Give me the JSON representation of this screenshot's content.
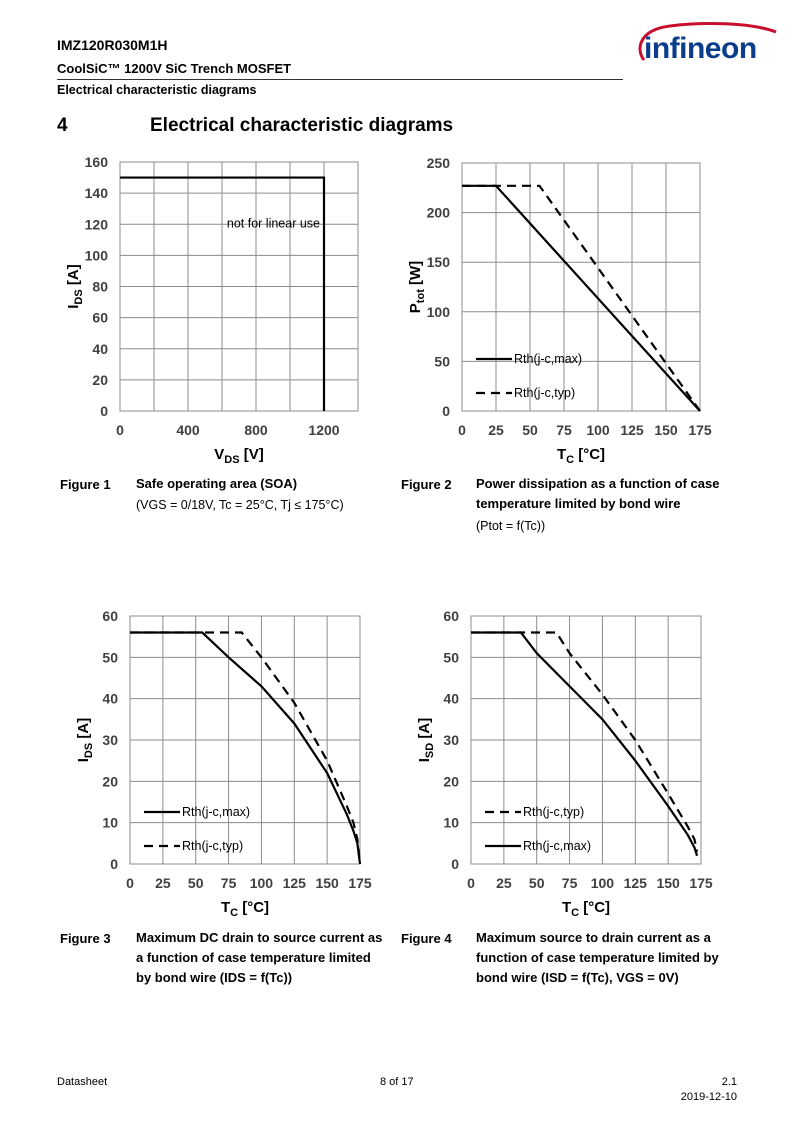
{
  "header": {
    "part_number": "IMZ120R030M1H",
    "subtitle": "CoolSiC™ 1200V SiC Trench MOSFET",
    "section_name": "Electrical characteristic diagrams",
    "logo_text": "infineon"
  },
  "section": {
    "number": "4",
    "title": "Electrical characteristic diagrams"
  },
  "figures": [
    {
      "label": "Figure 1",
      "caption_lines": [
        "Safe operating area (SOA)"
      ],
      "note": "(VGS = 0/18V, Tc = 25°C, Tj ≤ 175°C)"
    },
    {
      "label": "Figure 2",
      "caption_lines": [
        "Power dissipation as a function of case",
        "temperature limited by bond wire"
      ],
      "note": "(Ptot = f(Tc))"
    },
    {
      "label": "Figure 3",
      "caption_lines": [
        "Maximum DC drain to source current as",
        "a function of case temperature limited",
        "by bond wire (IDS = f(Tc))"
      ],
      "note": ""
    },
    {
      "label": "Figure 4",
      "caption_lines": [
        "Maximum source to drain current as a",
        "function of case temperature limited by",
        "bond wire (ISD = f(Tc),  VGS = 0V)"
      ],
      "note": ""
    }
  ],
  "chart_data": [
    {
      "type": "line",
      "xlabel": "VDS [V]",
      "ylabel": "IDS [A]",
      "xlim": [
        0,
        1400
      ],
      "ylim": [
        0,
        160
      ],
      "xticks": [
        0,
        400,
        800,
        1200
      ],
      "yticks": [
        0,
        20,
        40,
        60,
        80,
        100,
        120,
        140,
        160
      ],
      "grid": true,
      "annotation": "not for linear use",
      "series": [
        {
          "style": "solid",
          "x": [
            0,
            1200,
            1200
          ],
          "y": [
            150,
            150,
            0
          ]
        }
      ]
    },
    {
      "type": "line",
      "xlabel": "TC [°C]",
      "ylabel": "Ptot [W]",
      "xlim": [
        0,
        175
      ],
      "ylim": [
        0,
        250
      ],
      "xticks": [
        0,
        25,
        50,
        75,
        100,
        125,
        150,
        175
      ],
      "yticks": [
        0,
        50,
        100,
        150,
        200,
        250
      ],
      "grid": true,
      "legend_position": "bottom-left",
      "series": [
        {
          "name": "Rth(j-c,max)",
          "style": "solid",
          "x": [
            0,
            25,
            175
          ],
          "y": [
            227,
            227,
            0
          ]
        },
        {
          "name": "Rth(j-c,typ)",
          "style": "dashed",
          "x": [
            0,
            57,
            175
          ],
          "y": [
            227,
            227,
            0
          ]
        }
      ]
    },
    {
      "type": "line",
      "xlabel": "TC [°C]",
      "ylabel": "IDS [A]",
      "xlim": [
        0,
        175
      ],
      "ylim": [
        0,
        60
      ],
      "xticks": [
        0,
        25,
        50,
        75,
        100,
        125,
        150,
        175
      ],
      "yticks": [
        0,
        10,
        20,
        30,
        40,
        50,
        60
      ],
      "grid": true,
      "legend_position": "bottom-left",
      "series": [
        {
          "name": "Rth(j-c,max)",
          "style": "solid",
          "x": [
            0,
            55,
            75,
            100,
            125,
            150,
            165,
            170,
            173,
            175
          ],
          "y": [
            56,
            56,
            50,
            43,
            34,
            22,
            12,
            8,
            5,
            0
          ]
        },
        {
          "name": "Rth(j-c,typ)",
          "style": "dashed",
          "x": [
            0,
            85,
            100,
            125,
            150,
            165,
            170,
            173,
            175
          ],
          "y": [
            56,
            56,
            50,
            39,
            25,
            14,
            10,
            6,
            0
          ]
        }
      ]
    },
    {
      "type": "line",
      "xlabel": "TC [°C]",
      "ylabel": "ISD [A]",
      "xlim": [
        0,
        175
      ],
      "ylim": [
        0,
        60
      ],
      "xticks": [
        0,
        25,
        50,
        75,
        100,
        125,
        150,
        175
      ],
      "yticks": [
        0,
        10,
        20,
        30,
        40,
        50,
        60
      ],
      "grid": true,
      "legend_position": "bottom-left",
      "series": [
        {
          "name": "Rth(j-c,typ)",
          "style": "dashed",
          "x": [
            0,
            65,
            75,
            100,
            125,
            150,
            165,
            170,
            172
          ],
          "y": [
            56,
            56,
            51,
            41,
            30,
            17,
            9,
            6,
            3
          ]
        },
        {
          "name": "Rth(j-c,max)",
          "style": "solid",
          "x": [
            0,
            38,
            50,
            75,
            100,
            125,
            150,
            165,
            170,
            172
          ],
          "y": [
            56,
            56,
            51,
            43,
            35,
            25,
            14,
            7,
            4,
            2
          ]
        }
      ]
    }
  ],
  "footer": {
    "left": "Datasheet",
    "center": "8 of 17",
    "version": "2.1",
    "date": "2019-12-10"
  }
}
